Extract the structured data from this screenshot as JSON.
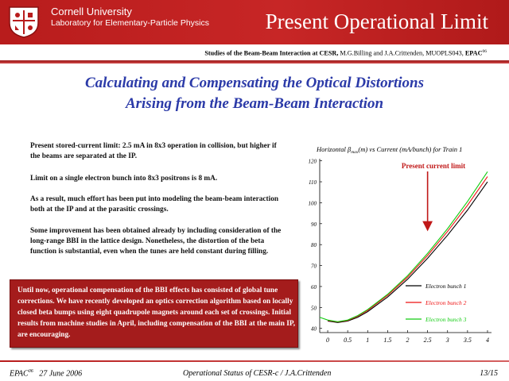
{
  "header": {
    "university": "Cornell University",
    "lab": "Laboratory for Elementary-Particle Physics",
    "title": "Present Operational Limit"
  },
  "citation": {
    "bold": "Studies of the Beam-Beam Interaction at CESR,",
    "text": "M.G.Billing and J.A.Crittenden, MUOPLS043,",
    "epac": "EPAC",
    "epac_sup": "06"
  },
  "main_title": {
    "line1": "Calculating and Compensating the Optical Distortions",
    "line2": "Arising from the Beam-Beam Interaction"
  },
  "body": {
    "p1": "Present stored-current limit: 2.5 mA in 8x3 operation in collision, but higher if the beams are separated at the IP.",
    "p2": "Limit on a single electron bunch into 8x3 positrons is 8 mA.",
    "p3": "As a result, much effort has been put into modeling the beam-beam interaction both at the IP and at the parasitic crossings.",
    "p4": "Some improvement has been obtained already by including consideration of the long-range BBI in the lattice design. Nonetheless, the distortion of the beta function is substantial, even when the tunes are held constant during filling.",
    "box": "Until now, operational compensation of the BBI effects has consisted of global tune corrections. We have recently developed an optics correction algorithm based on locally closed beta bumps using eight quadrupole magnets around each set of crossings. Initial results from machine studies in April, including compensation of the BBI at the main IP, are encouraging."
  },
  "footer": {
    "left_epac": "EPAC",
    "left_sup": "06",
    "left_date": "27 June 2006",
    "center": "Operational Status of CESR-c / J.A.Crittenden",
    "page": "13/15"
  },
  "chart_data": {
    "type": "line",
    "title_prefix": "Horizontal β",
    "title_sub": "max",
    "title_suffix": "(m) vs Current (mA/bunch) for Train 1",
    "annotation": "Present current limit",
    "annotation_x": 2.5,
    "xlim": [
      -0.2,
      4.1
    ],
    "ylim": [
      38,
      121
    ],
    "xticks": [
      0,
      0.5,
      1,
      1.5,
      2,
      2.5,
      3,
      3.5,
      4
    ],
    "xtick_labels": [
      "0",
      "0.5",
      "1",
      "1.5",
      "2",
      "2.5",
      "3",
      "3.5",
      "4"
    ],
    "yticks": [
      40,
      50,
      60,
      70,
      80,
      90,
      100,
      110,
      120
    ],
    "series": [
      {
        "name": "Electron bunch 1",
        "color": "#000000",
        "x": [
          0,
          0.25,
          0.5,
          0.75,
          1,
          1.5,
          2,
          2.5,
          3,
          3.5,
          4
        ],
        "y": [
          43.5,
          42.8,
          43.5,
          45.3,
          48,
          55,
          63.5,
          73.5,
          84.5,
          96.5,
          110
        ]
      },
      {
        "name": "Electron bunch 2",
        "color": "#ee1111",
        "x": [
          0,
          0.25,
          0.5,
          0.75,
          1,
          1.5,
          2,
          2.5,
          3,
          3.5,
          4
        ],
        "y": [
          43.8,
          43.1,
          43.8,
          45.8,
          48.6,
          55.8,
          64.5,
          74.8,
          86.3,
          98.8,
          112.5
        ]
      },
      {
        "name": "Electron bunch 3",
        "color": "#11cc11",
        "x": [
          -0.2,
          0,
          0.25,
          0.5,
          0.75,
          1,
          1.5,
          2,
          2.5,
          3,
          3.5,
          4
        ],
        "y": [
          45.3,
          44,
          43.2,
          44,
          46.1,
          49,
          56.3,
          65.2,
          75.8,
          87.6,
          100.6,
          114.8
        ]
      }
    ]
  }
}
